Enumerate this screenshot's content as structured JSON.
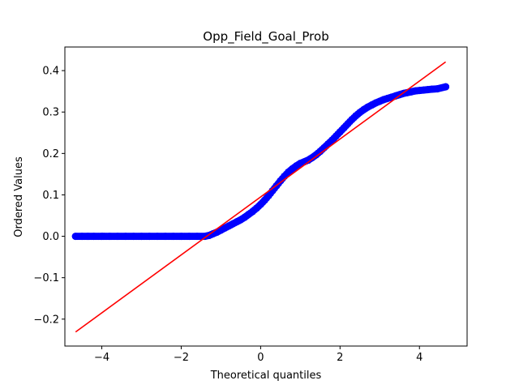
{
  "chart_data": {
    "type": "scatter",
    "title": "Opp_Field_Goal_Prob",
    "xlabel": "Theoretical quantiles",
    "ylabel": "Ordered Values",
    "xlim": [
      -4.93,
      5.2
    ],
    "ylim": [
      -0.265,
      0.457
    ],
    "xticks": [
      -4,
      -2,
      0,
      2,
      4
    ],
    "xtick_labels": [
      "−4",
      "−2",
      "0",
      "2",
      "4"
    ],
    "yticks": [
      -0.2,
      -0.1,
      0.0,
      0.1,
      0.2,
      0.3,
      0.4
    ],
    "ytick_labels": [
      "−0.2",
      "−0.1",
      "0.0",
      "0.1",
      "0.2",
      "0.3",
      "0.4"
    ],
    "grid": false,
    "legend": "none",
    "series": [
      {
        "kind": "points",
        "color": "#0000ff",
        "points": [
          [
            -4.66,
            0.0
          ],
          [
            -4.5,
            0.0
          ],
          [
            -4.35,
            0.0
          ],
          [
            -4.2,
            0.0
          ],
          [
            -4.0,
            0.0
          ],
          [
            -3.8,
            0.0
          ],
          [
            -3.6,
            0.0
          ],
          [
            -3.4,
            0.0
          ],
          [
            -3.2,
            0.0
          ],
          [
            -3.0,
            0.0
          ],
          [
            -2.8,
            0.0
          ],
          [
            -2.6,
            0.0
          ],
          [
            -2.4,
            0.0
          ],
          [
            -2.2,
            0.0
          ],
          [
            -2.0,
            0.0
          ],
          [
            -1.8,
            0.0
          ],
          [
            -1.6,
            0.0
          ],
          [
            -1.4,
            0.0
          ],
          [
            -1.3,
            0.002
          ],
          [
            -1.2,
            0.006
          ],
          [
            -1.1,
            0.01
          ],
          [
            -1.0,
            0.015
          ],
          [
            -0.9,
            0.02
          ],
          [
            -0.8,
            0.025
          ],
          [
            -0.7,
            0.03
          ],
          [
            -0.6,
            0.035
          ],
          [
            -0.5,
            0.04
          ],
          [
            -0.4,
            0.046
          ],
          [
            -0.3,
            0.053
          ],
          [
            -0.2,
            0.06
          ],
          [
            -0.1,
            0.068
          ],
          [
            0.0,
            0.077
          ],
          [
            0.1,
            0.087
          ],
          [
            0.2,
            0.098
          ],
          [
            0.3,
            0.11
          ],
          [
            0.4,
            0.122
          ],
          [
            0.5,
            0.134
          ],
          [
            0.6,
            0.145
          ],
          [
            0.7,
            0.155
          ],
          [
            0.8,
            0.163
          ],
          [
            0.9,
            0.17
          ],
          [
            1.0,
            0.176
          ],
          [
            1.1,
            0.18
          ],
          [
            1.2,
            0.184
          ],
          [
            1.3,
            0.19
          ],
          [
            1.4,
            0.197
          ],
          [
            1.5,
            0.205
          ],
          [
            1.6,
            0.214
          ],
          [
            1.7,
            0.223
          ],
          [
            1.8,
            0.232
          ],
          [
            1.9,
            0.242
          ],
          [
            2.0,
            0.252
          ],
          [
            2.1,
            0.262
          ],
          [
            2.2,
            0.272
          ],
          [
            2.3,
            0.282
          ],
          [
            2.4,
            0.291
          ],
          [
            2.5,
            0.299
          ],
          [
            2.6,
            0.306
          ],
          [
            2.7,
            0.312
          ],
          [
            2.8,
            0.317
          ],
          [
            2.9,
            0.322
          ],
          [
            3.0,
            0.326
          ],
          [
            3.1,
            0.33
          ],
          [
            3.2,
            0.333
          ],
          [
            3.3,
            0.336
          ],
          [
            3.4,
            0.339
          ],
          [
            3.5,
            0.342
          ],
          [
            3.6,
            0.345
          ],
          [
            3.7,
            0.347
          ],
          [
            3.8,
            0.349
          ],
          [
            3.9,
            0.351
          ],
          [
            4.0,
            0.352
          ],
          [
            4.1,
            0.353
          ],
          [
            4.2,
            0.354
          ],
          [
            4.3,
            0.355
          ],
          [
            4.45,
            0.356
          ],
          [
            4.66,
            0.361
          ]
        ]
      },
      {
        "kind": "fit-line",
        "color": "#ff0000",
        "points": [
          [
            -4.66,
            -0.231
          ],
          [
            4.66,
            0.421
          ]
        ]
      }
    ]
  }
}
